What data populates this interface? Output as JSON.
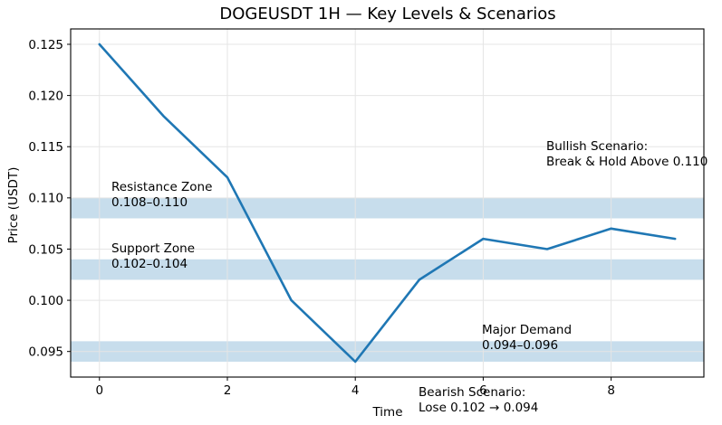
{
  "chart_data": {
    "type": "line",
    "title": "DOGEUSDT 1H — Key Levels & Scenarios",
    "xlabel": "Time",
    "ylabel": "Price (USDT)",
    "x": [
      0,
      1,
      2,
      3,
      4,
      5,
      6,
      7,
      8,
      9
    ],
    "series": [
      {
        "name": "DOGEUSDT price",
        "values": [
          0.125,
          0.118,
          0.112,
          0.1,
          0.094,
          0.102,
          0.106,
          0.105,
          0.107,
          0.106
        ]
      }
    ],
    "xlim": [
      -0.45,
      9.45
    ],
    "ylim": [
      0.0925,
      0.1265
    ],
    "x_axis": {
      "tick_values": [
        0,
        2,
        4,
        6,
        8
      ],
      "tick_labels": [
        "0",
        "2",
        "4",
        "6",
        "8"
      ]
    },
    "y_axis": {
      "tick_values": [
        0.095,
        0.1,
        0.105,
        0.11,
        0.115,
        0.12,
        0.125
      ],
      "tick_labels": [
        "0.095",
        "0.100",
        "0.105",
        "0.110",
        "0.115",
        "0.120",
        "0.125"
      ]
    },
    "grid": true,
    "legend": "none",
    "zones": [
      {
        "name": "resistance",
        "label": "Resistance Zone",
        "range_label": "0.108–0.110",
        "from": 0.108,
        "to": 0.11
      },
      {
        "name": "support",
        "label": "Support Zone",
        "range_label": "0.102–0.104",
        "from": 0.102,
        "to": 0.104
      },
      {
        "name": "major-demand",
        "label": "Major Demand",
        "range_label": "0.094–0.096",
        "from": 0.094,
        "to": 0.096
      }
    ],
    "annotations": {
      "bullish": {
        "line1": "Bullish Scenario:",
        "line2": "Break & Hold Above 0.110"
      },
      "bearish": {
        "line1": "Bearish Scenario:",
        "line2": "Lose 0.102 → 0.094"
      }
    },
    "colors": {
      "line": "#1f77b4",
      "zone": "#c7ddec",
      "grid": "#e5e5e5",
      "spine": "#000000",
      "text": "#000000"
    }
  }
}
